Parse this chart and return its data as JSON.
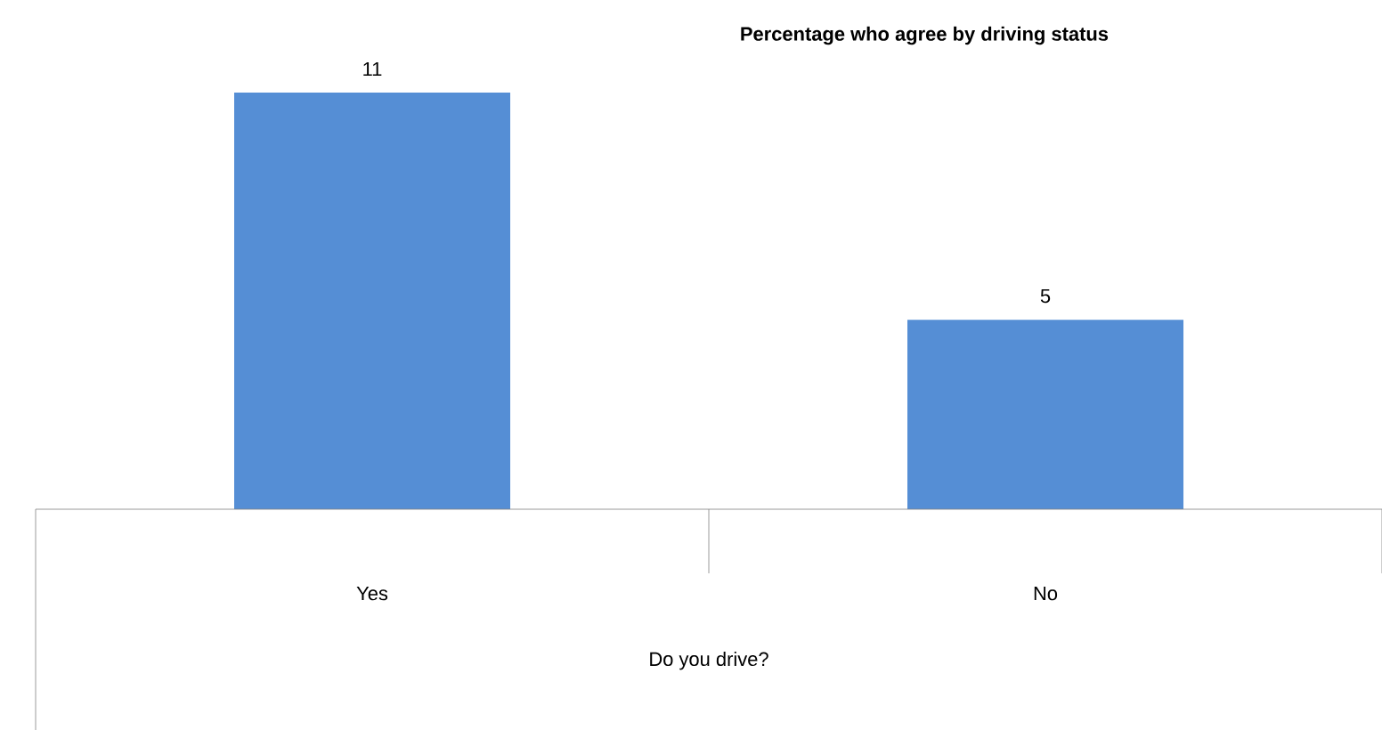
{
  "chart_data": {
    "type": "bar",
    "title": "Percentage who agree by driving status",
    "xlabel": "Do you drive?",
    "categories": [
      "Yes",
      "No"
    ],
    "values": [
      11,
      5
    ],
    "color": "#558ed5",
    "data_labels": true
  }
}
